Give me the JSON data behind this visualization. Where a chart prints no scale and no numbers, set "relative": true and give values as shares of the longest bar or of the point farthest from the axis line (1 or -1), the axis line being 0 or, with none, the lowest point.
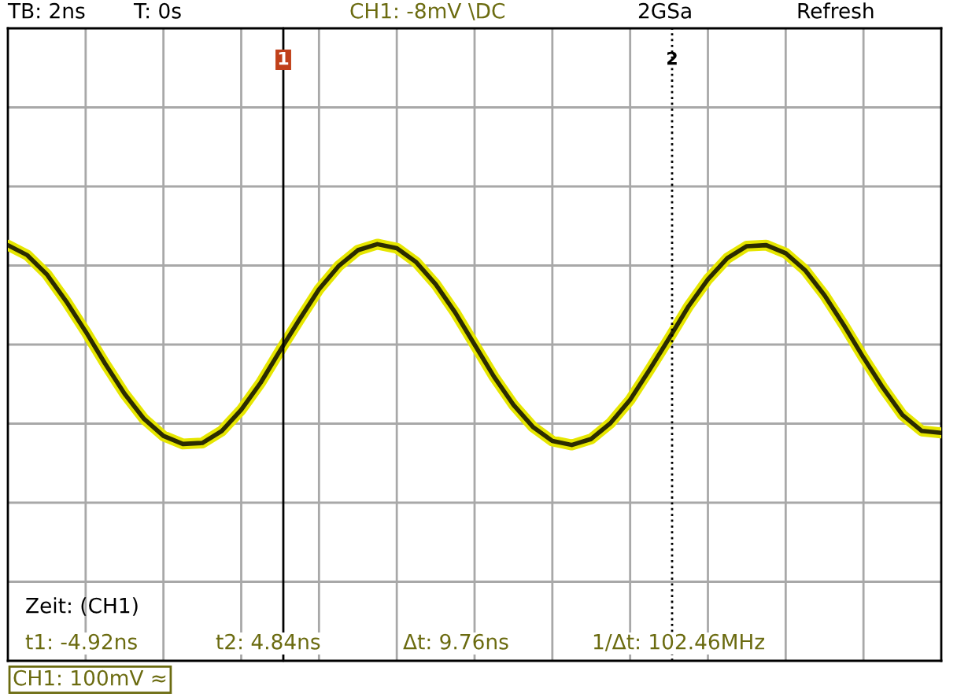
{
  "chart_data": {
    "type": "line",
    "relative": true,
    "grid": true,
    "categories": [
      null,
      null,
      null,
      null,
      null,
      null,
      null,
      null,
      null,
      null,
      null,
      null,
      null,
      null,
      null,
      null,
      null,
      null,
      null,
      null,
      null,
      null,
      null,
      null,
      null,
      null,
      null,
      null,
      null,
      null,
      null,
      null,
      null,
      null,
      null,
      null,
      null,
      null,
      null,
      null,
      null,
      null,
      null,
      null,
      null,
      null,
      null,
      null,
      null
    ],
    "series": [
      {
        "color": "#2b2b00",
        "values": [
          0.99,
          0.89,
          0.7,
          0.43,
          0.13,
          -0.19,
          -0.49,
          -0.74,
          -0.91,
          -0.99,
          -0.98,
          -0.86,
          -0.65,
          -0.38,
          -0.06,
          0.25,
          0.55,
          0.78,
          0.94,
          1.0,
          0.96,
          0.82,
          0.6,
          0.32,
          0,
          -0.32,
          -0.6,
          -0.82,
          -0.96,
          -1.0,
          -0.94,
          -0.78,
          -0.55,
          -0.25,
          0.06,
          0.38,
          0.65,
          0.86,
          0.98,
          0.99,
          0.91,
          0.74,
          0.49,
          0.19,
          -0.13,
          -0.43,
          -0.7,
          -0.86,
          -0.88
        ]
      }
    ],
    "annotations": [
      "TB: 2ns",
      "T: 0s",
      "CH1: -8mV \\DC",
      "2GSa",
      "Refresh",
      "Zeit: (CH1)",
      "t1: -4.92ns",
      "t2: 4.84ns",
      "Δt: 9.76ns",
      "1/Δt: 102.46MHz",
      "CH1: 100mV ≈",
      "1",
      "2"
    ]
  }
}
